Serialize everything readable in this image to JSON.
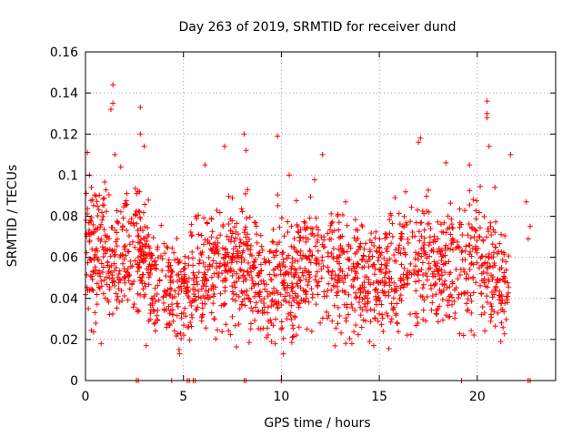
{
  "chart_data": {
    "type": "scatter",
    "title": "Day 263 of 2019, SRMTID for receiver dund",
    "xlabel": "GPS time / hours",
    "ylabel": "SRMTID / TECUs",
    "xlim": [
      0,
      24
    ],
    "ylim": [
      0,
      0.16
    ],
    "x_ticks": [
      0,
      5,
      10,
      15,
      20
    ],
    "x_tick_labels": [
      "0",
      "5",
      "10",
      "15",
      "20"
    ],
    "y_ticks": [
      0,
      0.02,
      0.04,
      0.06,
      0.08,
      0.1,
      0.12,
      0.14,
      0.16
    ],
    "y_tick_labels": [
      "0",
      "0.02",
      "0.04",
      "0.06",
      "0.08",
      "0.1",
      "0.12",
      "0.14",
      "0.16"
    ],
    "grid": true,
    "marker": "plus",
    "color": "#ff0000",
    "notes": "Approximately 2,000 red '+' points between 0 and ~23 h, mostly 0.02-0.09 TECU. Dense band is represented by a reproducible sample that matches the observed distribution; the explicit points below are the clearly identifiable outliers and zero-value samples.",
    "series": [
      {
        "name": "SRMTID",
        "band": [
          {
            "x": 0.0,
            "mean": 0.062,
            "spread": 0.022
          },
          {
            "x": 1.0,
            "mean": 0.06,
            "spread": 0.02
          },
          {
            "x": 2.0,
            "mean": 0.062,
            "spread": 0.02
          },
          {
            "x": 3.0,
            "mean": 0.058,
            "spread": 0.02
          },
          {
            "x": 4.0,
            "mean": 0.046,
            "spread": 0.016
          },
          {
            "x": 5.0,
            "mean": 0.045,
            "spread": 0.016
          },
          {
            "x": 6.0,
            "mean": 0.052,
            "spread": 0.018
          },
          {
            "x": 7.0,
            "mean": 0.058,
            "spread": 0.02
          },
          {
            "x": 8.0,
            "mean": 0.06,
            "spread": 0.02
          },
          {
            "x": 9.0,
            "mean": 0.048,
            "spread": 0.02
          },
          {
            "x": 10.0,
            "mean": 0.05,
            "spread": 0.02
          },
          {
            "x": 11.0,
            "mean": 0.054,
            "spread": 0.02
          },
          {
            "x": 12.0,
            "mean": 0.058,
            "spread": 0.02
          },
          {
            "x": 13.0,
            "mean": 0.055,
            "spread": 0.02
          },
          {
            "x": 14.0,
            "mean": 0.048,
            "spread": 0.018
          },
          {
            "x": 15.0,
            "mean": 0.05,
            "spread": 0.018
          },
          {
            "x": 16.0,
            "mean": 0.056,
            "spread": 0.02
          },
          {
            "x": 17.0,
            "mean": 0.058,
            "spread": 0.02
          },
          {
            "x": 18.0,
            "mean": 0.052,
            "spread": 0.018
          },
          {
            "x": 19.0,
            "mean": 0.056,
            "spread": 0.02
          },
          {
            "x": 20.0,
            "mean": 0.062,
            "spread": 0.022
          },
          {
            "x": 21.0,
            "mean": 0.05,
            "spread": 0.018
          },
          {
            "x": 21.6,
            "mean": 0.045,
            "spread": 0.015
          }
        ],
        "points": [
          {
            "x": 0.1,
            "y": 0.111
          },
          {
            "x": 0.2,
            "y": 0.1
          },
          {
            "x": 0.3,
            "y": 0.094
          },
          {
            "x": 0.8,
            "y": 0.018
          },
          {
            "x": 1.3,
            "y": 0.132
          },
          {
            "x": 1.4,
            "y": 0.144
          },
          {
            "x": 1.4,
            "y": 0.135
          },
          {
            "x": 1.5,
            "y": 0.11
          },
          {
            "x": 1.8,
            "y": 0.104
          },
          {
            "x": 2.8,
            "y": 0.133
          },
          {
            "x": 2.8,
            "y": 0.12
          },
          {
            "x": 3.0,
            "y": 0.114
          },
          {
            "x": 3.1,
            "y": 0.017
          },
          {
            "x": 4.8,
            "y": 0.013
          },
          {
            "x": 6.1,
            "y": 0.105
          },
          {
            "x": 7.1,
            "y": 0.114
          },
          {
            "x": 8.1,
            "y": 0.12
          },
          {
            "x": 8.2,
            "y": 0.112
          },
          {
            "x": 9.5,
            "y": 0.019
          },
          {
            "x": 9.8,
            "y": 0.119
          },
          {
            "x": 10.1,
            "y": 0.013
          },
          {
            "x": 10.4,
            "y": 0.1
          },
          {
            "x": 12.1,
            "y": 0.11
          },
          {
            "x": 13.6,
            "y": 0.018
          },
          {
            "x": 14.5,
            "y": 0.019
          },
          {
            "x": 17.0,
            "y": 0.116
          },
          {
            "x": 17.1,
            "y": 0.118
          },
          {
            "x": 18.4,
            "y": 0.106
          },
          {
            "x": 19.3,
            "y": 0.022
          },
          {
            "x": 19.6,
            "y": 0.105
          },
          {
            "x": 20.5,
            "y": 0.136
          },
          {
            "x": 20.5,
            "y": 0.13
          },
          {
            "x": 20.5,
            "y": 0.128
          },
          {
            "x": 20.6,
            "y": 0.114
          },
          {
            "x": 20.9,
            "y": 0.094
          },
          {
            "x": 21.2,
            "y": 0.019
          },
          {
            "x": 21.7,
            "y": 0.11
          },
          {
            "x": 22.5,
            "y": 0.087
          },
          {
            "x": 22.6,
            "y": 0.069
          },
          {
            "x": 22.7,
            "y": 0.075
          },
          {
            "x": 2.6,
            "y": 0.0
          },
          {
            "x": 2.7,
            "y": 0.0
          },
          {
            "x": 4.4,
            "y": 0.0
          },
          {
            "x": 5.2,
            "y": 0.0
          },
          {
            "x": 5.3,
            "y": 0.0
          },
          {
            "x": 5.5,
            "y": 0.0
          },
          {
            "x": 5.6,
            "y": 0.0
          },
          {
            "x": 8.1,
            "y": 0.0
          },
          {
            "x": 8.2,
            "y": 0.0
          },
          {
            "x": 10.0,
            "y": 0.0
          },
          {
            "x": 19.2,
            "y": 0.0
          },
          {
            "x": 22.6,
            "y": 0.0
          },
          {
            "x": 22.7,
            "y": 0.0
          }
        ]
      }
    ]
  }
}
